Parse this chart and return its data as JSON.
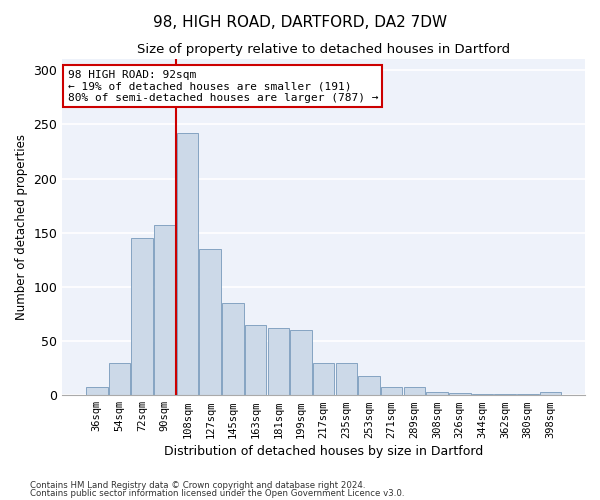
{
  "title_line1": "98, HIGH ROAD, DARTFORD, DA2 7DW",
  "title_line2": "Size of property relative to detached houses in Dartford",
  "xlabel": "Distribution of detached houses by size in Dartford",
  "ylabel": "Number of detached properties",
  "bar_color": "#ccd9e8",
  "bar_edge_color": "#7799bb",
  "background_color": "#eef2fa",
  "grid_color": "white",
  "categories": [
    "36sqm",
    "54sqm",
    "72sqm",
    "90sqm",
    "108sqm",
    "127sqm",
    "145sqm",
    "163sqm",
    "181sqm",
    "199sqm",
    "217sqm",
    "235sqm",
    "253sqm",
    "271sqm",
    "289sqm",
    "308sqm",
    "326sqm",
    "344sqm",
    "362sqm",
    "380sqm",
    "398sqm"
  ],
  "bar_heights": [
    8,
    30,
    145,
    157,
    242,
    135,
    85,
    65,
    62,
    60,
    30,
    30,
    18,
    8,
    8,
    3,
    2,
    1,
    1,
    1,
    3
  ],
  "vline_x": 3.5,
  "vline_color": "#cc0000",
  "annotation_text": "98 HIGH ROAD: 92sqm\n← 19% of detached houses are smaller (191)\n80% of semi-detached houses are larger (787) →",
  "annotation_box_color": "white",
  "annotation_box_edge_color": "#cc0000",
  "ylim": [
    0,
    310
  ],
  "yticks": [
    0,
    50,
    100,
    150,
    200,
    250,
    300
  ],
  "footnote1": "Contains HM Land Registry data © Crown copyright and database right 2024.",
  "footnote2": "Contains public sector information licensed under the Open Government Licence v3.0."
}
